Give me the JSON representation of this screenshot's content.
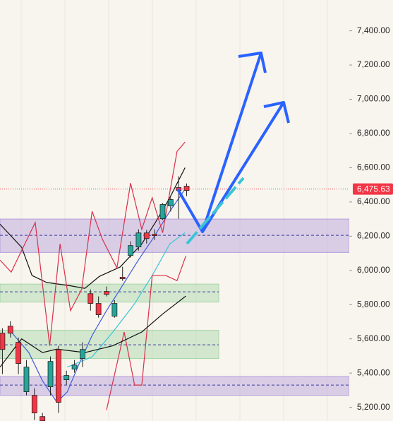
{
  "chart_data": {
    "type": "candlestick",
    "xlim": [
      -0.3,
      43.3
    ],
    "ylim": [
      5120,
      7580
    ],
    "yticks": [
      {
        "value": 5200,
        "label": "5,200.00"
      },
      {
        "value": 5400,
        "label": "5,400.00"
      },
      {
        "value": 5600,
        "label": "5,600.00"
      },
      {
        "value": 5800,
        "label": "5,800.00"
      },
      {
        "value": 6000,
        "label": "6,000.00"
      },
      {
        "value": 6200,
        "label": "6,200.00"
      },
      {
        "value": 6400,
        "label": "6,400.00"
      },
      {
        "value": 6600,
        "label": "6,600.00"
      },
      {
        "value": 6800,
        "label": "6,800.00"
      },
      {
        "value": 7000,
        "label": "7,000.00"
      },
      {
        "value": 7200,
        "label": "7,200.00"
      },
      {
        "value": 7400,
        "label": "7,400.00"
      }
    ],
    "up_color": "#26a69a",
    "down_color": "#f23645",
    "candles": {
      "open": [
        5633,
        5674,
        5580,
        5291,
        5270,
        5146,
        5320,
        5538,
        5361,
        5423,
        5485,
        5864,
        5807,
        5877,
        5732,
        5960,
        6087,
        6137,
        6219,
        6211,
        6302,
        6377,
        6484,
        6492
      ],
      "high": [
        5662,
        5703,
        5608,
        5476,
        5311,
        5167,
        5497,
        5559,
        5414,
        5476,
        5580,
        5889,
        5848,
        5906,
        5827,
        6021,
        6170,
        6240,
        6236,
        6240,
        6393,
        6426,
        6550,
        6508
      ],
      "low": [
        5394,
        5608,
        5394,
        5270,
        5125,
        5121,
        5270,
        5167,
        5332,
        5402,
        5435,
        5765,
        5724,
        5848,
        5724,
        5939,
        6075,
        6116,
        6157,
        6178,
        6294,
        6344,
        6302,
        6434
      ],
      "close": [
        5538,
        5633,
        5456,
        5435,
        5167,
        5121,
        5468,
        5229,
        5386,
        5447,
        5538,
        5807,
        5741,
        5860,
        5807,
        5951,
        6145,
        6219,
        6186,
        6203,
        6385,
        6414,
        6467,
        6467
      ]
    },
    "lines": [
      {
        "color": "#111111",
        "x": [
          -0.3,
          2.4,
          3.7,
          5.5,
          8.5,
          10.3,
          12.1,
          14.7,
          17.4,
          19.1,
          20.9,
          22.8
        ],
        "values": [
          6270,
          6135,
          5970,
          5930,
          5910,
          5895,
          5965,
          6020,
          6155,
          6280,
          6425,
          6600
        ]
      },
      {
        "color": "#3b5bdb",
        "x": [
          1.1,
          3.3,
          5,
          6.8,
          8.1,
          9.4,
          11.2,
          13,
          14.7,
          16.9,
          18.7,
          20.9,
          22.8
        ],
        "values": [
          5640,
          5520,
          5355,
          5230,
          5290,
          5435,
          5620,
          5765,
          5890,
          6055,
          6180,
          6345,
          6475
        ]
      },
      {
        "color": "#3bc4d6",
        "x": [
          8.1,
          11.2,
          13.8,
          16.5,
          18.7,
          20.9,
          22.8
        ],
        "values": [
          5435,
          5495,
          5640,
          5805,
          5970,
          6155,
          6220
        ]
      },
      {
        "color": "#d9304a",
        "x": [
          -0.3,
          1.1,
          2.8,
          4.1,
          5.9,
          7.2,
          8.5,
          9.9,
          11.2,
          12.5,
          14.3,
          16,
          17.4,
          18.7,
          20,
          21.8,
          22.8
        ],
        "values": [
          6060,
          5990,
          6155,
          6280,
          5560,
          6155,
          5765,
          5890,
          6345,
          6180,
          6015,
          6510,
          6240,
          6425,
          6220,
          6695,
          6750
        ]
      },
      {
        "color": "#d9304a",
        "x": [
          13,
          15.2,
          16.5,
          17.4,
          18.7,
          20.4,
          21.8,
          22.9
        ],
        "values": [
          5185,
          5640,
          5330,
          5330,
          5970,
          5970,
          5940,
          6085
        ]
      },
      {
        "color": "#111111",
        "x": [
          -0.3,
          2.4,
          5,
          6.8,
          10.3,
          13.8,
          17.4,
          20,
          22.9
        ],
        "values": [
          5435,
          5600,
          5520,
          5540,
          5520,
          5560,
          5640,
          5745,
          5850
        ]
      }
    ],
    "zones": [
      {
        "low": 6105,
        "high": 6300,
        "mid": 6205,
        "color": "#b39ddb",
        "full": true
      },
      {
        "low": 5815,
        "high": 5920,
        "mid": 5875,
        "color": "#a5d6a7",
        "full": false
      },
      {
        "low": 5485,
        "high": 5650,
        "mid": 5565,
        "color": "#a5d6a7",
        "full": false
      },
      {
        "low": 5270,
        "high": 5380,
        "mid": 5330,
        "color": "#b39ddb",
        "full": true
      }
    ],
    "price_line": {
      "value": 6475.63,
      "label": "6,475.63",
      "color": "#f23645"
    }
  }
}
